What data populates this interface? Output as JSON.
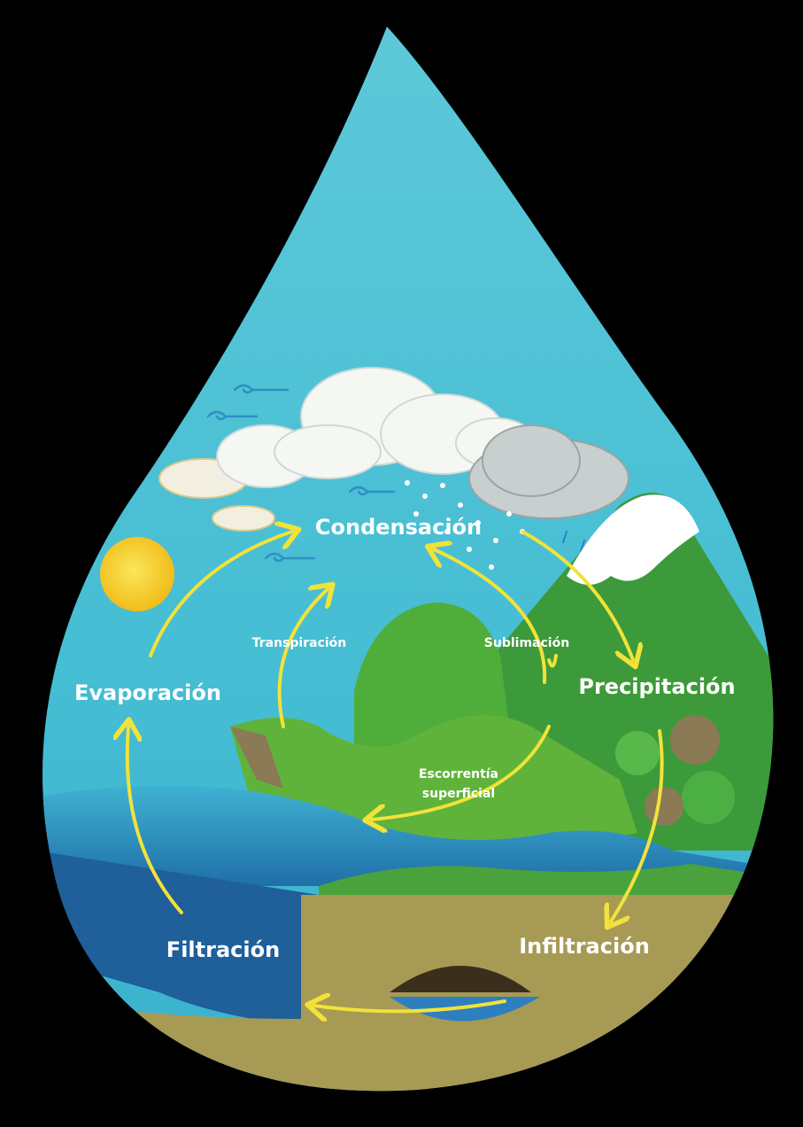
{
  "diagram": {
    "labels": {
      "condensacion": "Condensación",
      "precipitacion": "Precipitación",
      "evaporacion": "Evaporación",
      "transpiracion": "Transpiración",
      "sublimacion": "Sublimación",
      "escorrentia_1": "Escorrentía",
      "escorrentia_2": "superficial",
      "infiltracion": "Infiltración",
      "filtracion": "Filtración"
    },
    "colors": {
      "background": "#000000",
      "sky": "#4cc3d6",
      "arrow": "#f2e23a",
      "label": "#ffffff",
      "sun": "#f6d21e",
      "lake": "#2c95c2",
      "grass": "#5fb33b",
      "mountain": "#3d9a3a",
      "snow": "#ffffff",
      "soil": "#a79a55",
      "cloud": "#f5f7f3"
    }
  }
}
